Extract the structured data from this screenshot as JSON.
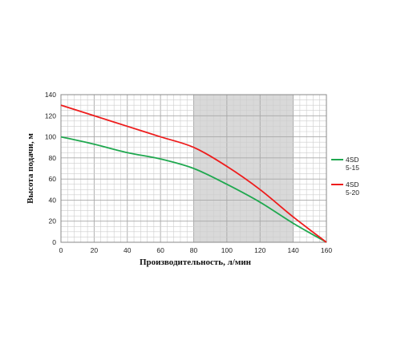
{
  "chart_data": {
    "type": "line",
    "xlabel": "Производительность, л/мин",
    "ylabel": "Высота подачи, м",
    "xlim": [
      0,
      160
    ],
    "ylim": [
      0,
      140
    ],
    "x_ticks": [
      "0",
      "20",
      "40",
      "60",
      "80",
      "100",
      "120",
      "140",
      "160"
    ],
    "y_ticks": [
      "0",
      "20",
      "40",
      "60",
      "80",
      "100",
      "120",
      "140"
    ],
    "grid": true,
    "highlight_range": [
      80,
      140
    ],
    "legend_position": "right",
    "series": [
      {
        "name": "4SD 5-15",
        "label_lines": [
          "4SD",
          "5-15"
        ],
        "color": "#1fa84f",
        "x": [
          0,
          20,
          40,
          60,
          80,
          100,
          120,
          140,
          160
        ],
        "y": [
          100,
          93,
          85,
          79,
          70,
          55,
          38,
          18,
          0
        ]
      },
      {
        "name": "4SD 5-20",
        "label_lines": [
          "4SD",
          "5-20"
        ],
        "color": "#ee1c1c",
        "x": [
          0,
          20,
          40,
          60,
          80,
          100,
          120,
          140,
          160
        ],
        "y": [
          130,
          120,
          110,
          100,
          90,
          72,
          50,
          24,
          0
        ]
      }
    ]
  }
}
